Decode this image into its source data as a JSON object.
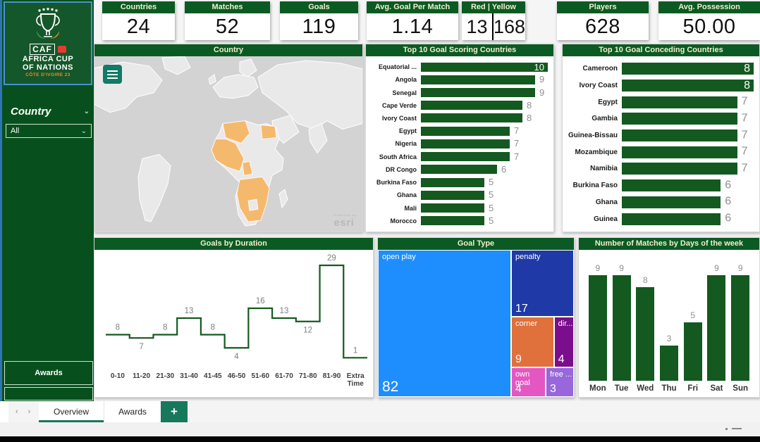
{
  "sidebar": {
    "logo": {
      "caf": "CAF",
      "line1": "AFRICA CUP",
      "line2": "OF NATIONS",
      "line3": "CÔTE D'IVOIRE 23"
    },
    "filter_label": "Country",
    "filter_value": "All",
    "awards_label": "Awards"
  },
  "kpis": [
    {
      "label": "Countries",
      "value": "24"
    },
    {
      "label": "Matches",
      "value": "52"
    },
    {
      "label": "Goals",
      "value": "119"
    },
    {
      "label": "Avg. Goal Per Match",
      "value": "1.14"
    },
    {
      "label": "Red | Yellow",
      "red": "13",
      "yellow": "168"
    },
    {
      "label": "Players",
      "value": "628"
    },
    {
      "label": "Avg. Possession",
      "value": "50.00"
    }
  ],
  "map": {
    "title": "Country",
    "attribution_prefix": "Powered by",
    "attribution": "esri",
    "highlight_color": "#F5B96D"
  },
  "chart_data": [
    {
      "type": "bar",
      "orientation": "horizontal",
      "title": "Top 10 Goal Scoring Countries",
      "categories": [
        "Equatorial ...",
        "Angola",
        "Senegal",
        "Cape Verde",
        "Ivory Coast",
        "Egypt",
        "Nigeria",
        "South Africa",
        "DR Congo",
        "Burkina Faso",
        "Ghana",
        "Mali",
        "Morocco"
      ],
      "values": [
        10,
        9,
        9,
        8,
        8,
        7,
        7,
        7,
        6,
        5,
        5,
        5,
        5
      ],
      "xlim": [
        0,
        10
      ],
      "bar_color": "#14591F"
    },
    {
      "type": "bar",
      "orientation": "horizontal",
      "title": "Top 10 Goal Conceding Countries",
      "categories": [
        "Cameroon",
        "Ivory Coast",
        "Egypt",
        "Gambia",
        "Guinea-Bissau",
        "Mozambique",
        "Namibia",
        "Burkina Faso",
        "Ghana",
        "Guinea"
      ],
      "values": [
        8,
        8,
        7,
        7,
        7,
        7,
        7,
        6,
        6,
        6
      ],
      "xlim": [
        0,
        8
      ],
      "bar_color": "#14591F"
    },
    {
      "type": "line",
      "subtype": "step",
      "title": "Goals by Duration",
      "categories": [
        "0-10",
        "11-20",
        "21-30",
        "31-40",
        "41-45",
        "46-50",
        "51-60",
        "61-70",
        "71-80",
        "81-90",
        "Extra Time"
      ],
      "values": [
        8,
        7,
        8,
        13,
        8,
        4,
        16,
        13,
        12,
        29,
        1
      ],
      "ylim": [
        0,
        29
      ],
      "line_color": "#14591F"
    },
    {
      "type": "treemap",
      "title": "Goal Type",
      "cells": [
        {
          "label": "open play",
          "value": 82,
          "color": "#1E8EFF"
        },
        {
          "label": "penalty",
          "value": 17,
          "color": "#1F3AA6"
        },
        {
          "label": "corner",
          "value": 9,
          "color": "#E0703C"
        },
        {
          "label": "dir...",
          "value": 4,
          "color": "#7B0E8C"
        },
        {
          "label": "own goal",
          "value": 4,
          "color": "#E457C2"
        },
        {
          "label": "free ...",
          "value": 3,
          "color": "#9767DB"
        }
      ]
    },
    {
      "type": "bar",
      "orientation": "vertical",
      "title": "Number of Matches by Days of the week",
      "categories": [
        "Mon",
        "Tue",
        "Wed",
        "Thu",
        "Fri",
        "Sat",
        "Sun"
      ],
      "values": [
        9,
        9,
        8,
        3,
        5,
        9,
        9
      ],
      "ylim": [
        0,
        9
      ],
      "bar_color": "#14591F"
    }
  ],
  "tabs": {
    "prev": "‹",
    "next": "›",
    "items": [
      {
        "label": "Overview",
        "active": true
      },
      {
        "label": "Awards",
        "active": false
      }
    ],
    "add": "+"
  }
}
